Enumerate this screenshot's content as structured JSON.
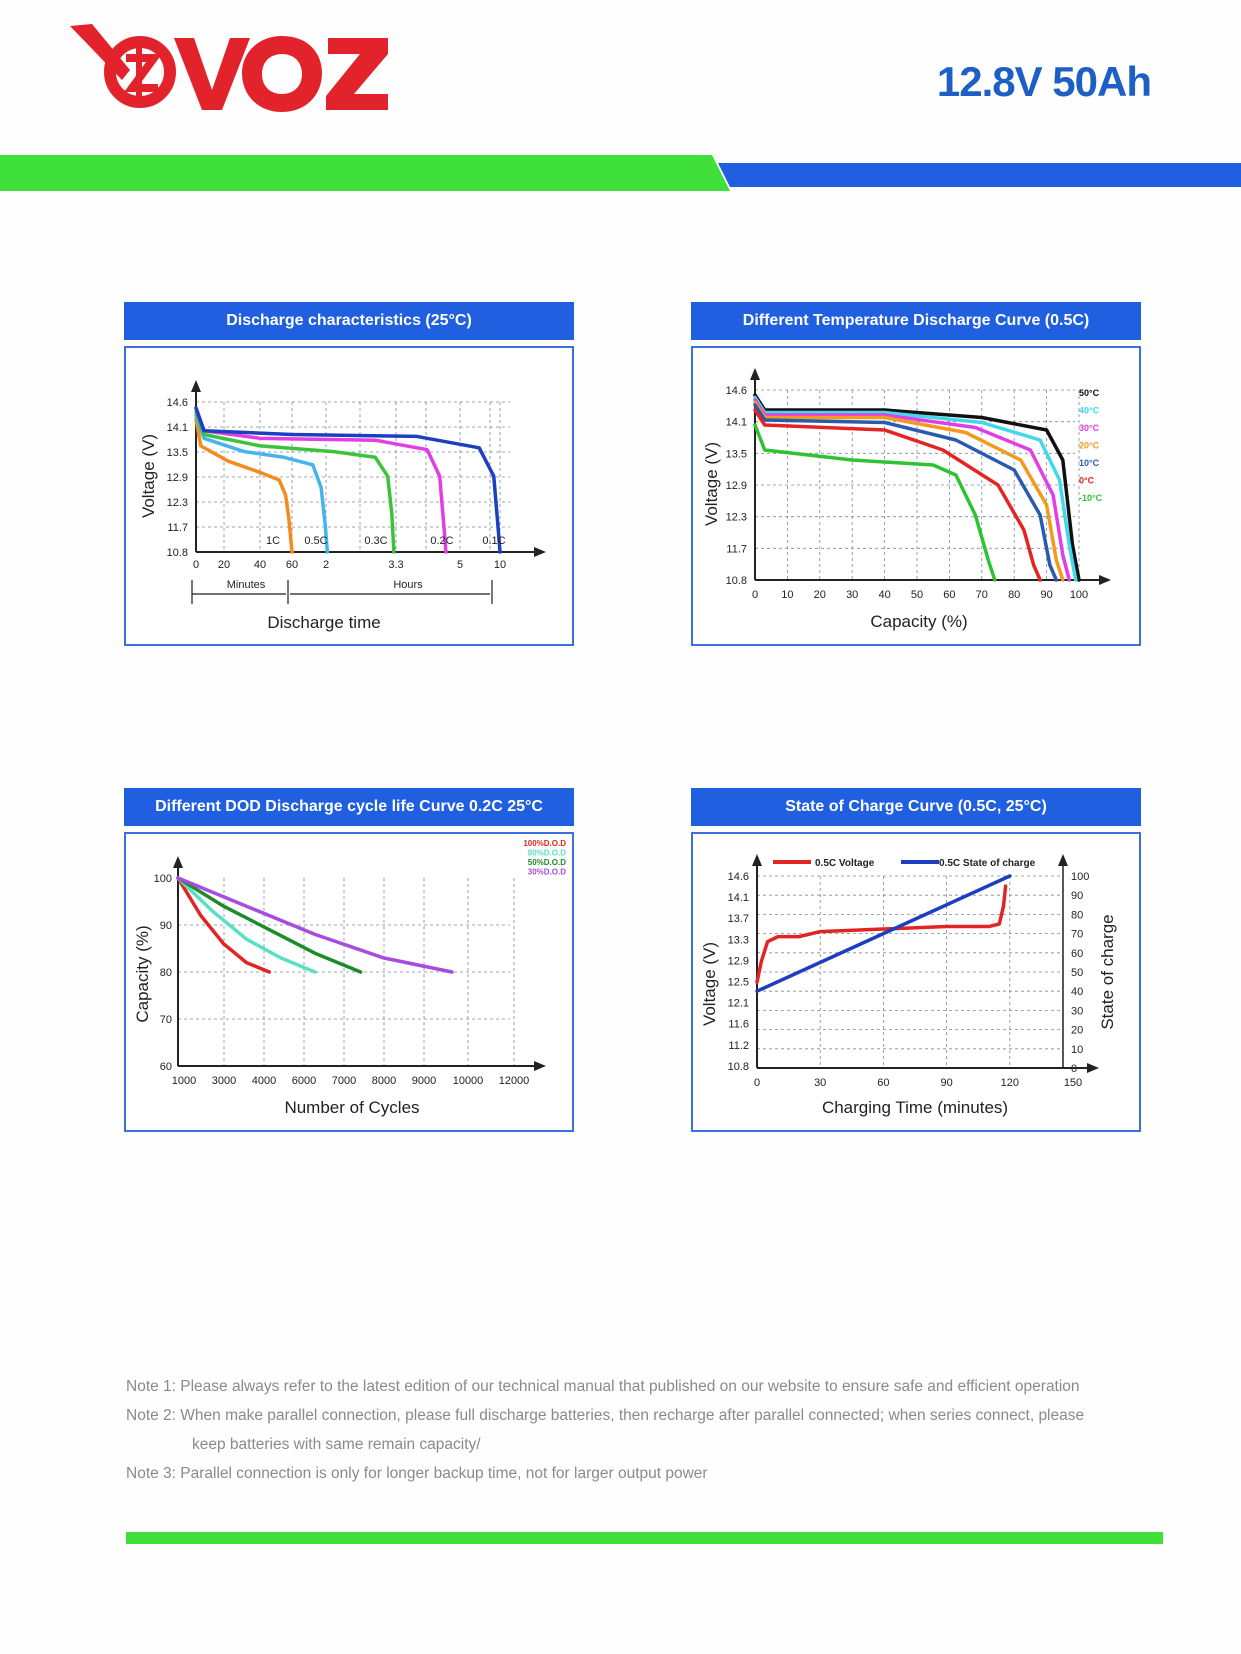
{
  "brand": {
    "name": "VOZ",
    "color": "#e3232b"
  },
  "model": "12.8V 50Ah",
  "colors": {
    "green": "#3fe03a",
    "blue": "#1f5fe0",
    "grid": "#7a8a9a"
  },
  "notes": [
    "Note 1: Please always refer to the latest edition of our technical manual that published on our website to ensure safe and efficient operation",
    "Note 2: When make parallel connection, please full discharge batteries, then recharge after parallel connected; when series connect, please",
    "keep batteries with same remain capacity/",
    "Note 3: Parallel connection is only for longer backup time, not for larger output power"
  ],
  "chart_data": [
    {
      "type": "line",
      "title": "Discharge characteristics (25°C)",
      "xlabel": "Discharge time",
      "ylabel": "Voltage (V)",
      "x_ticks": [
        "0",
        "20",
        "40",
        "60",
        "2",
        "3.3",
        "5",
        "10"
      ],
      "y_ticks": [
        "14.6",
        "14.1",
        "13.5",
        "12.9",
        "12.3",
        "11.7",
        "10.8"
      ],
      "x_sub_labels": [
        "Minutes",
        "Hours"
      ],
      "ylim": [
        10.8,
        14.6
      ],
      "series": [
        {
          "name": "1C",
          "color": "#f28c1e",
          "points": [
            [
              0,
              14.3
            ],
            [
              3,
              13.6
            ],
            [
              20,
              13.2
            ],
            [
              40,
              12.9
            ],
            [
              52,
              12.7
            ],
            [
              56,
              12.3
            ],
            [
              58,
              11.7
            ],
            [
              60,
              10.8
            ]
          ]
        },
        {
          "name": "0.5C",
          "color": "#45b4ee",
          "points": [
            [
              0,
              14.4
            ],
            [
              5,
              13.8
            ],
            [
              30,
              13.45
            ],
            [
              55,
              13.3
            ],
            [
              70,
              13.1
            ],
            [
              74,
              12.5
            ],
            [
              76,
              11.5
            ],
            [
              77,
              10.8
            ]
          ]
        },
        {
          "name": "0.3C",
          "color": "#3bc43b",
          "points": [
            [
              0,
              14.5
            ],
            [
              5,
              13.9
            ],
            [
              40,
              13.6
            ],
            [
              80,
              13.45
            ],
            [
              100,
              13.3
            ],
            [
              106,
              12.8
            ],
            [
              108,
              11.8
            ],
            [
              109,
              10.8
            ]
          ]
        },
        {
          "name": "0.2C",
          "color": "#e33ee3",
          "points": [
            [
              0,
              14.6
            ],
            [
              5,
              14.0
            ],
            [
              40,
              13.8
            ],
            [
              100,
              13.75
            ],
            [
              125,
              13.5
            ],
            [
              131,
              12.8
            ],
            [
              133,
              11.5
            ],
            [
              134,
              10.8
            ]
          ]
        },
        {
          "name": "0.1C",
          "color": "#1c3fc2",
          "points": [
            [
              0,
              14.6
            ],
            [
              5,
              14.0
            ],
            [
              60,
              13.9
            ],
            [
              120,
              13.85
            ],
            [
              150,
              13.55
            ],
            [
              157,
              12.8
            ],
            [
              159,
              11.5
            ],
            [
              160,
              10.8
            ]
          ]
        }
      ]
    },
    {
      "type": "line",
      "title": "Different Temperature Discharge Curve (0.5C)",
      "xlabel": "Capacity (%)",
      "ylabel": "Voltage (V)",
      "x_ticks": [
        "0",
        "10",
        "20",
        "30",
        "40",
        "50",
        "60",
        "70",
        "80",
        "90",
        "100"
      ],
      "y_ticks": [
        "14.6",
        "14.1",
        "13.5",
        "12.9",
        "12.3",
        "11.7",
        "10.8"
      ],
      "ylim": [
        10.8,
        14.6
      ],
      "xlim": [
        0,
        100
      ],
      "legend": [
        "50°C",
        "40°C",
        "30°C",
        "20°C",
        "10°C",
        "0°C",
        "-10°C"
      ],
      "series": [
        {
          "name": "50°C",
          "color": "#111111",
          "points": [
            [
              0,
              14.5
            ],
            [
              3,
              14.2
            ],
            [
              40,
              14.2
            ],
            [
              70,
              14.05
            ],
            [
              90,
              13.8
            ],
            [
              95,
              13.2
            ],
            [
              98,
              11.5
            ],
            [
              100,
              10.8
            ]
          ]
        },
        {
          "name": "40°C",
          "color": "#40d8ea",
          "points": [
            [
              0,
              14.45
            ],
            [
              3,
              14.15
            ],
            [
              40,
              14.15
            ],
            [
              70,
              13.95
            ],
            [
              88,
              13.6
            ],
            [
              94,
              12.8
            ],
            [
              97,
              11.5
            ],
            [
              99,
              10.8
            ]
          ]
        },
        {
          "name": "30°C",
          "color": "#e23ee6",
          "points": [
            [
              0,
              14.4
            ],
            [
              3,
              14.1
            ],
            [
              40,
              14.1
            ],
            [
              68,
              13.85
            ],
            [
              85,
              13.4
            ],
            [
              92,
              12.5
            ],
            [
              95,
              11.3
            ],
            [
              97,
              10.8
            ]
          ]
        },
        {
          "name": "20°C",
          "color": "#f29a1e",
          "points": [
            [
              0,
              14.35
            ],
            [
              3,
              14.05
            ],
            [
              40,
              14.05
            ],
            [
              65,
              13.75
            ],
            [
              82,
              13.2
            ],
            [
              90,
              12.3
            ],
            [
              93,
              11.2
            ],
            [
              95,
              10.8
            ]
          ]
        },
        {
          "name": "10°C",
          "color": "#2a5ab0",
          "points": [
            [
              0,
              14.3
            ],
            [
              3,
              14.0
            ],
            [
              40,
              13.95
            ],
            [
              62,
              13.6
            ],
            [
              80,
              13.0
            ],
            [
              88,
              12.1
            ],
            [
              91,
              11.1
            ],
            [
              93,
              10.8
            ]
          ]
        },
        {
          "name": "0°C",
          "color": "#e32424",
          "points": [
            [
              0,
              14.2
            ],
            [
              3,
              13.9
            ],
            [
              40,
              13.8
            ],
            [
              58,
              13.4
            ],
            [
              75,
              12.7
            ],
            [
              83,
              11.8
            ],
            [
              86,
              11.1
            ],
            [
              88,
              10.8
            ]
          ]
        },
        {
          "name": "-10°C",
          "color": "#2fc42f",
          "points": [
            [
              0,
              13.9
            ],
            [
              3,
              13.4
            ],
            [
              30,
              13.2
            ],
            [
              55,
              13.1
            ],
            [
              62,
              12.9
            ],
            [
              68,
              12.1
            ],
            [
              72,
              11.2
            ],
            [
              74,
              10.8
            ]
          ]
        }
      ]
    },
    {
      "type": "line",
      "title": "Different DOD Discharge cycle life Curve 0.2C 25°C",
      "xlabel": "Number of Cycles",
      "ylabel": "Capacity (%)",
      "x_ticks": [
        "1000",
        "3000",
        "4000",
        "6000",
        "7000",
        "8000",
        "9000",
        "10000",
        "12000"
      ],
      "y_ticks": [
        "100",
        "90",
        "80",
        "70",
        "60"
      ],
      "ylim": [
        60,
        100
      ],
      "legend": [
        "100%D.O.D",
        "80%D.O.D",
        "50%D.O.D",
        "30%D.O.D"
      ],
      "series": [
        {
          "name": "100%D.O.D",
          "color": "#e32424",
          "points": [
            [
              0,
              100
            ],
            [
              1,
              92
            ],
            [
              2,
              86
            ],
            [
              3,
              82
            ],
            [
              4,
              80
            ]
          ]
        },
        {
          "name": "80%D.O.D",
          "color": "#5ae0c0",
          "points": [
            [
              0,
              100
            ],
            [
              1.5,
              93
            ],
            [
              3,
              87
            ],
            [
              4.5,
              83
            ],
            [
              6,
              80
            ]
          ]
        },
        {
          "name": "50%D.O.D",
          "color": "#1e8a2a",
          "points": [
            [
              0,
              100
            ],
            [
              2,
              94
            ],
            [
              4,
              89
            ],
            [
              6,
              84
            ],
            [
              8,
              80
            ]
          ]
        },
        {
          "name": "30%D.O.D",
          "color": "#a64ce0",
          "points": [
            [
              0,
              100
            ],
            [
              3,
              94
            ],
            [
              6,
              88
            ],
            [
              9,
              83
            ],
            [
              12,
              80
            ]
          ]
        }
      ]
    },
    {
      "type": "line",
      "title": "State of Charge Curve (0.5C, 25°C)",
      "xlabel": "Charging Time (minutes)",
      "ylabel": "Voltage (V)",
      "y2label": "State of charge",
      "x_ticks": [
        "0",
        "30",
        "60",
        "90",
        "120",
        "150"
      ],
      "y_ticks": [
        "14.6",
        "14.1",
        "13.7",
        "13.3",
        "12.9",
        "12.5",
        "12.1",
        "11.6",
        "11.2",
        "10.8"
      ],
      "y2_ticks": [
        "100",
        "90",
        "80",
        "70",
        "60",
        "50",
        "40",
        "30",
        "20",
        "10",
        "0"
      ],
      "xlim": [
        0,
        150
      ],
      "legend": [
        "0.5C Voltage",
        "0.5C State of charge"
      ],
      "series": [
        {
          "name": "0.5C Voltage",
          "color": "#e32424",
          "points": [
            [
              0,
              12.5
            ],
            [
              2,
              12.9
            ],
            [
              5,
              13.3
            ],
            [
              10,
              13.4
            ],
            [
              20,
              13.4
            ],
            [
              30,
              13.5
            ],
            [
              60,
              13.55
            ],
            [
              90,
              13.6
            ],
            [
              110,
              13.6
            ],
            [
              115,
              13.65
            ],
            [
              117,
              14.0
            ],
            [
              118,
              14.4
            ]
          ]
        },
        {
          "name": "0.5C State of charge",
          "color": "#1c3fc2",
          "points": [
            [
              0,
              40
            ],
            [
              60,
              70
            ],
            [
              120,
              100
            ]
          ]
        }
      ]
    }
  ]
}
